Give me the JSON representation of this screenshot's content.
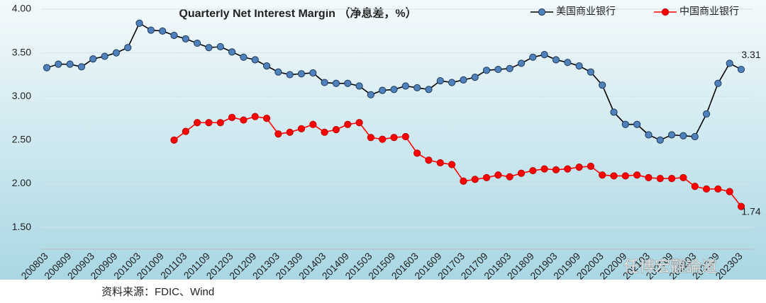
{
  "chart_data": {
    "type": "line",
    "title": "Quarterly Net Interest Margin （净息差，%）",
    "source": "资料来源：FDIC、Wind",
    "watermark": "任博宏觀論道",
    "categories": [
      "200803",
      null,
      "200809",
      null,
      "200903",
      null,
      "200909",
      null,
      "201003",
      null,
      "201009",
      null,
      "201103",
      null,
      "201109",
      null,
      "201203",
      null,
      "201209",
      null,
      "201303",
      null,
      "201309",
      null,
      "201403",
      null,
      "201409",
      null,
      "201503",
      null,
      "201509",
      null,
      "201603",
      null,
      "201609",
      null,
      "201703",
      null,
      "201709",
      null,
      "201803",
      null,
      "201809",
      null,
      "201903",
      null,
      "201909",
      null,
      "202003",
      null,
      "202009",
      null,
      "202103",
      null,
      "202109",
      null,
      "202203",
      null,
      "202209",
      null,
      "202303"
    ],
    "series": [
      {
        "name": "美国商业银行",
        "color": "#4f81bd",
        "line_color": "#000000",
        "values": [
          3.33,
          3.37,
          3.37,
          3.34,
          3.43,
          3.46,
          3.5,
          3.56,
          3.84,
          3.76,
          3.75,
          3.7,
          3.66,
          3.61,
          3.56,
          3.57,
          3.51,
          3.45,
          3.42,
          3.35,
          3.28,
          3.25,
          3.26,
          3.27,
          3.16,
          3.15,
          3.15,
          3.12,
          3.02,
          3.07,
          3.08,
          3.12,
          3.1,
          3.08,
          3.18,
          3.16,
          3.19,
          3.22,
          3.3,
          3.31,
          3.32,
          3.38,
          3.45,
          3.48,
          3.42,
          3.39,
          3.35,
          3.28,
          3.13,
          2.82,
          2.68,
          2.68,
          2.56,
          2.5,
          2.56,
          2.55,
          2.54,
          2.8,
          3.15,
          3.38,
          3.31
        ]
      },
      {
        "name": "中国商业银行",
        "color": "#ff0000",
        "line_color": "#ff0000",
        "values": [
          null,
          null,
          null,
          null,
          null,
          null,
          null,
          null,
          null,
          null,
          null,
          2.5,
          2.6,
          2.7,
          2.7,
          2.7,
          2.76,
          2.73,
          2.77,
          2.75,
          2.57,
          2.59,
          2.63,
          2.68,
          2.59,
          2.62,
          2.68,
          2.7,
          2.53,
          2.51,
          2.53,
          2.54,
          2.35,
          2.27,
          2.24,
          2.22,
          2.03,
          2.05,
          2.07,
          2.1,
          2.08,
          2.12,
          2.15,
          2.17,
          2.16,
          2.17,
          2.19,
          2.2,
          2.1,
          2.09,
          2.09,
          2.1,
          2.07,
          2.06,
          2.06,
          2.07,
          1.97,
          1.94,
          1.94,
          1.91,
          1.74
        ]
      }
    ],
    "ylim": [
      1.25,
      4.0
    ],
    "yticks": [
      {
        "value": 1.5,
        "label": "1.50"
      },
      {
        "value": 2,
        "label": "2.00"
      },
      {
        "value": 2.5,
        "label": "2.50"
      },
      {
        "value": 3,
        "label": "3.00"
      },
      {
        "value": 3.5,
        "label": "3.50"
      },
      {
        "value": 4,
        "label": "4.00"
      }
    ],
    "grid": true,
    "legend": "top-right"
  }
}
